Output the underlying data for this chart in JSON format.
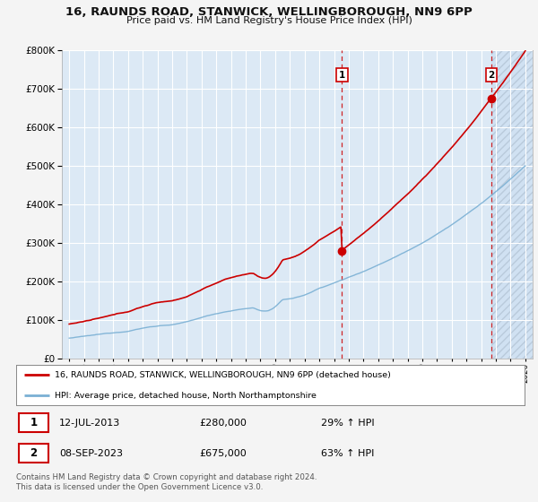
{
  "title_line1": "16, RAUNDS ROAD, STANWICK, WELLINGBOROUGH, NN9 6PP",
  "title_line2": "Price paid vs. HM Land Registry's House Price Index (HPI)",
  "background_color": "#f4f4f4",
  "plot_bg_color": "#dce9f5",
  "hatch_bg_color": "#c8d8ea",
  "grid_color": "#ffffff",
  "sale1_label": "1",
  "sale1_date": "12-JUL-2013",
  "sale1_price": "£280,000",
  "sale1_hpi": "29% ↑ HPI",
  "sale2_label": "2",
  "sale2_date": "08-SEP-2023",
  "sale2_price": "£675,000",
  "sale2_hpi": "63% ↑ HPI",
  "legend_line1": "16, RAUNDS ROAD, STANWICK, WELLINGBOROUGH, NN9 6PP (detached house)",
  "legend_line2": "HPI: Average price, detached house, North Northamptonshire",
  "footer": "Contains HM Land Registry data © Crown copyright and database right 2024.\nThis data is licensed under the Open Government Licence v3.0.",
  "hpi_color": "#7ab0d4",
  "price_color": "#cc0000",
  "vline_color": "#cc0000",
  "ylim_max": 800000,
  "ylim_min": 0,
  "sale1_x": 2013.54,
  "sale2_x": 2023.69,
  "xmin": 1995,
  "xmax": 2026
}
